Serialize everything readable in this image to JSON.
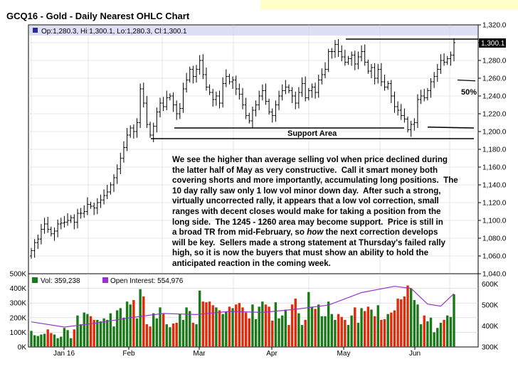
{
  "header": {
    "title": "GCQ16 - Gold - Daily Nearest OHLC Chart",
    "ohlc_label": "Op:1,280.3, Hi:1,300.1, Lo:1,280.3, Cl:1,300.1",
    "last_price_tag": "1,300.1"
  },
  "volume_legend": {
    "vol_label": "Vol: 359,238",
    "oi_label": "Open Interest: 554,976"
  },
  "annotations": {
    "support_label": "Support Area",
    "fib_label": "50%",
    "commentary_lines": [
      "We see the higher than average selling vol when price declined during",
      "the latter half of May as very constructive.  Call it smart money both",
      "covering shorts and more importantly, accumulating long positions.  The",
      "10 day rally saw only 1 low vol minor down day.  After such a strong,",
      "virtually uncorrected rally, it appears that a low vol correction, small",
      "ranges with decent closes would make for taking a position from the",
      "long side.  The 1245 - 1260 area may become support.  Price is still in",
      "a broad TR from mid-February, so |how| the next correction develops",
      "will be key.  Sellers made a strong statement at Thursday's failed rally",
      "high, so it is now the buyers that must show an ability to hold the",
      "anticipated reaction in the coming week."
    ]
  },
  "colors": {
    "up_volume": "#1a7a1a",
    "down_volume": "#e02a0a",
    "open_interest": "#9933cc",
    "header_band": "#dde0f5",
    "top_highlight": "#ffffcc"
  },
  "chart_data": {
    "type": "ohlc",
    "price_axis": {
      "ylim": [
        1040,
        1320
      ],
      "ticks": [
        "1,040.0",
        "1,060.0",
        "1,080.0",
        "1,100.0",
        "1,120.0",
        "1,140.0",
        "1,160.0",
        "1,180.0",
        "1,200.0",
        "1,220.0",
        "1,240.0",
        "1,260.0",
        "1,280.0",
        "1,300.0",
        "1,320.0"
      ]
    },
    "volume_axis": {
      "ylim": [
        0,
        500000
      ],
      "ticks": [
        "0K",
        "100K",
        "200K",
        "300K",
        "400K",
        "500K"
      ]
    },
    "oi_axis": {
      "ylim": [
        300000,
        650000
      ],
      "ticks": [
        "300K",
        "400K",
        "500K",
        "600K"
      ]
    },
    "x_labels": [
      "Jan 16",
      "Feb",
      "Mar",
      "Apr",
      "May",
      "Jun"
    ],
    "closes": [
      1066,
      1075,
      1079,
      1090,
      1096,
      1090,
      1085,
      1088,
      1096,
      1097,
      1098,
      1100,
      1103,
      1098,
      1108,
      1108,
      1110,
      1118,
      1116,
      1114,
      1120,
      1123,
      1128,
      1132,
      1140,
      1148,
      1158,
      1170,
      1182,
      1196,
      1204,
      1200,
      1210,
      1248,
      1232,
      1208,
      1196,
      1206,
      1222,
      1232,
      1228,
      1238,
      1240,
      1230,
      1220,
      1226,
      1248,
      1258,
      1270,
      1262,
      1270,
      1280,
      1264,
      1250,
      1244,
      1236,
      1240,
      1232,
      1254,
      1262,
      1256,
      1258,
      1248,
      1242,
      1230,
      1218,
      1212,
      1224,
      1230,
      1240,
      1246,
      1234,
      1222,
      1218,
      1230,
      1240,
      1246,
      1250,
      1246,
      1240,
      1232,
      1244,
      1254,
      1238,
      1246,
      1250,
      1244,
      1258,
      1264,
      1270,
      1290,
      1290,
      1298,
      1290,
      1284,
      1278,
      1282,
      1286,
      1276,
      1284,
      1290,
      1278,
      1268,
      1272,
      1260,
      1270,
      1256,
      1250,
      1254,
      1240,
      1228,
      1224,
      1218,
      1214,
      1202,
      1208,
      1210,
      1236,
      1240,
      1238,
      1246,
      1256,
      1262,
      1270,
      1280,
      1278,
      1282,
      1286,
      1300
    ],
    "volume": [
      110000,
      80000,
      75000,
      85000,
      90000,
      120000,
      95000,
      85000,
      60000,
      70000,
      130000,
      115000,
      60000,
      120000,
      215000,
      155000,
      235000,
      225000,
      210000,
      185000,
      185000,
      175000,
      195000,
      185000,
      230000,
      140000,
      250000,
      265000,
      200000,
      310000,
      290000,
      320000,
      195000,
      395000,
      345000,
      155000,
      140000,
      230000,
      195000,
      270000,
      225000,
      155000,
      135000,
      160000,
      165000,
      225000,
      185000,
      270000,
      245000,
      165000,
      155000,
      385000,
      310000,
      305000,
      310000,
      285000,
      270000,
      250000,
      225000,
      240000,
      275000,
      265000,
      290000,
      300000,
      270000,
      235000,
      195000,
      290000,
      190000,
      275000,
      310000,
      290000,
      275000,
      180000,
      305000,
      195000,
      215000,
      255000,
      150000,
      290000,
      330000,
      230000,
      150000,
      185000,
      375000,
      275000,
      260000,
      290000,
      210000,
      210000,
      310000,
      225000,
      185000,
      225000,
      205000,
      185000,
      150000,
      215000,
      270000,
      165000,
      265000,
      245000,
      275000,
      255000,
      210000,
      285000,
      185000,
      190000,
      225000,
      235000,
      250000,
      330000,
      325000,
      345000,
      420000,
      400000,
      320000,
      290000,
      155000,
      215000,
      175000,
      200000,
      100000,
      130000,
      165000,
      185000,
      215000,
      205000,
      359238
    ],
    "open_interest_trend": [
      [
        0,
        420000
      ],
      [
        10,
        395000
      ],
      [
        20,
        415000
      ],
      [
        30,
        440000
      ],
      [
        40,
        460000
      ],
      [
        50,
        455000
      ],
      [
        60,
        470000
      ],
      [
        70,
        465000
      ],
      [
        80,
        480000
      ],
      [
        90,
        500000
      ],
      [
        100,
        560000
      ],
      [
        110,
        590000
      ],
      [
        115,
        580000
      ],
      [
        120,
        505000
      ],
      [
        124,
        495000
      ],
      [
        128,
        554976
      ]
    ]
  }
}
